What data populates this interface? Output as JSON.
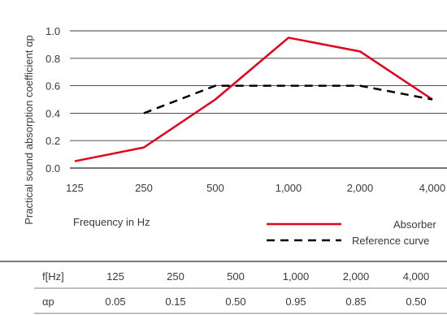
{
  "chart_data": {
    "type": "line",
    "categories": [
      "125",
      "250",
      "500",
      "1,000",
      "2,000",
      "4,000"
    ],
    "series": [
      {
        "name": "Absorber",
        "color": "#e2001a",
        "style": "solid",
        "values": [
          0.05,
          0.15,
          0.5,
          0.95,
          0.85,
          0.5
        ]
      },
      {
        "name": "Reference curve",
        "color": "#000000",
        "style": "dashed",
        "values": [
          null,
          0.4,
          0.6,
          0.6,
          0.6,
          0.5
        ]
      }
    ],
    "xlabel": "Frequency in Hz",
    "ylabel": "Practical sound absorption coefficient αp",
    "ylim": [
      0.0,
      1.0
    ],
    "yticks": [
      "0.0",
      "0.2",
      "0.4",
      "0.6",
      "0.8",
      "1.0"
    ],
    "grid": true,
    "legend": "bottom-right"
  },
  "table": {
    "row1_header": "f[Hz]",
    "row1_values": [
      "125",
      "250",
      "500",
      "1,000",
      "2,000",
      "4,000"
    ],
    "row2_header": "αp",
    "row2_values": [
      "0.05",
      "0.15",
      "0.50",
      "0.95",
      "0.85",
      "0.50"
    ]
  }
}
